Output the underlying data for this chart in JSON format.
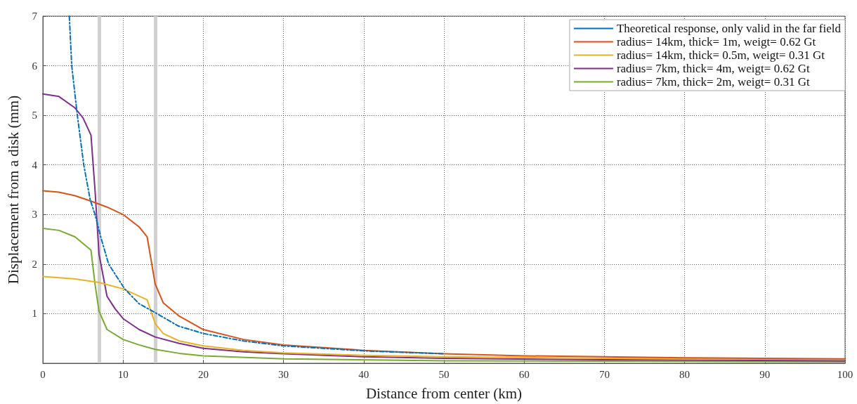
{
  "chart_data": {
    "type": "line",
    "xlabel": "Distance from center (km)",
    "ylabel": "Displacement from a disk (mm)",
    "xlim": [
      0,
      100
    ],
    "xticks": [
      0,
      10,
      20,
      30,
      40,
      50,
      60,
      70,
      80,
      90,
      100
    ],
    "ylim": [
      0,
      7
    ],
    "yticks": [
      1,
      2,
      3,
      4,
      5,
      6,
      7
    ],
    "grid": true,
    "legend": "top right",
    "marker": "none",
    "ref_lines": [
      {
        "axis": "x",
        "value": 7,
        "color": "#cccccc"
      },
      {
        "axis": "x",
        "value": 14,
        "color": "#cccccc"
      }
    ],
    "series": [
      {
        "name": "Theoretical response, only valid in the far field",
        "color": "#0072bd",
        "line_style": "dashed",
        "x": [
          3.3,
          3.6,
          4.3,
          5.1,
          5.9,
          6.5,
          7.3,
          8.2,
          10.2,
          12,
          13.8,
          16.9,
          20,
          25,
          30,
          40,
          50
        ],
        "values": [
          7,
          6,
          5,
          4,
          3.3,
          3,
          2.5,
          2.0,
          1.5,
          1.2,
          1.04,
          0.75,
          0.6,
          0.45,
          0.35,
          0.25,
          0.19
        ]
      },
      {
        "name": "radius= 14km, thick= 1m, weigt= 0.62 Gt",
        "color": "#d95319",
        "line_style": "solid",
        "x": [
          0,
          2,
          4,
          6,
          8,
          10,
          12,
          13,
          14,
          15,
          17,
          20,
          25,
          30,
          40,
          50,
          60,
          70,
          80,
          90,
          100
        ],
        "values": [
          3.48,
          3.45,
          3.38,
          3.27,
          3.15,
          3.0,
          2.75,
          2.55,
          1.6,
          1.22,
          0.95,
          0.68,
          0.48,
          0.37,
          0.26,
          0.19,
          0.15,
          0.13,
          0.11,
          0.1,
          0.09
        ]
      },
      {
        "name": "radius= 14km, thick= 0.5m, weigt= 0.31 Gt",
        "color": "#edb120",
        "line_style": "solid",
        "x": [
          0,
          4,
          7,
          10,
          13,
          14,
          15,
          17,
          20,
          25,
          30,
          40,
          50,
          70,
          100
        ],
        "values": [
          1.75,
          1.7,
          1.63,
          1.5,
          1.28,
          0.8,
          0.6,
          0.45,
          0.35,
          0.26,
          0.21,
          0.16,
          0.13,
          0.1,
          0.08
        ]
      },
      {
        "name": "radius= 7km, thick= 4m, weigt= 0.62 Gt",
        "color": "#7e2f8e",
        "line_style": "solid",
        "x": [
          0,
          2,
          4,
          5,
          6,
          6.5,
          7,
          8,
          9,
          10,
          12,
          14,
          17,
          20,
          25,
          30,
          40,
          50,
          70,
          100
        ],
        "values": [
          5.43,
          5.38,
          5.15,
          4.95,
          4.6,
          3.5,
          2.2,
          1.35,
          1.1,
          0.9,
          0.68,
          0.53,
          0.4,
          0.3,
          0.23,
          0.19,
          0.13,
          0.1,
          0.07,
          0.05
        ]
      },
      {
        "name": "radius= 7km, thick= 2m, weigt= 0.31 Gt",
        "color": "#77ac30",
        "line_style": "solid",
        "x": [
          0,
          2,
          4,
          6,
          6.5,
          7,
          8,
          10,
          12,
          14,
          17,
          20,
          30,
          50,
          100
        ],
        "values": [
          2.72,
          2.68,
          2.55,
          2.28,
          1.6,
          1.05,
          0.68,
          0.48,
          0.37,
          0.28,
          0.2,
          0.15,
          0.09,
          0.05,
          0.03
        ]
      }
    ]
  }
}
